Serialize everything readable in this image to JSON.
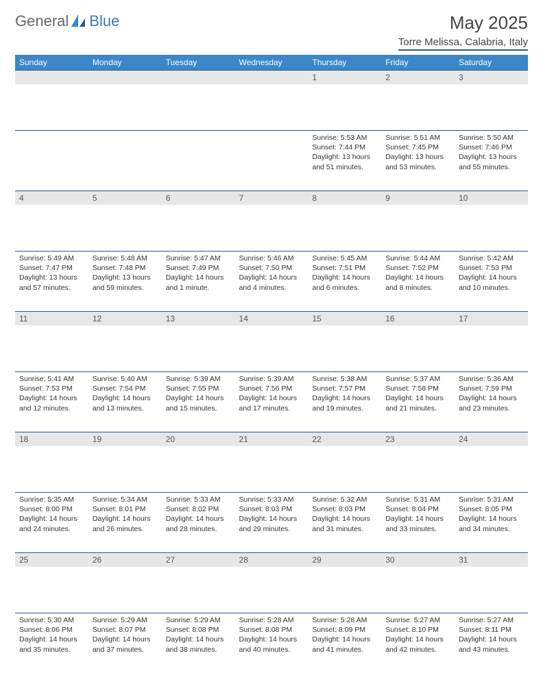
{
  "logo": {
    "general": "General",
    "blue": "Blue"
  },
  "title": "May 2025",
  "location": "Torre Melissa, Calabria, Italy",
  "dayHeaders": [
    "Sunday",
    "Monday",
    "Tuesday",
    "Wednesday",
    "Thursday",
    "Friday",
    "Saturday"
  ],
  "colors": {
    "header_bg": "#3b87c8",
    "rule": "#2a5a8a",
    "daynum_bg": "#e7e7e7"
  },
  "weeks": [
    [
      null,
      null,
      null,
      null,
      {
        "n": "1",
        "sr": "5:53 AM",
        "ss": "7:44 PM",
        "dl": "13 hours and 51 minutes."
      },
      {
        "n": "2",
        "sr": "5:51 AM",
        "ss": "7:45 PM",
        "dl": "13 hours and 53 minutes."
      },
      {
        "n": "3",
        "sr": "5:50 AM",
        "ss": "7:46 PM",
        "dl": "13 hours and 55 minutes."
      }
    ],
    [
      {
        "n": "4",
        "sr": "5:49 AM",
        "ss": "7:47 PM",
        "dl": "13 hours and 57 minutes."
      },
      {
        "n": "5",
        "sr": "5:48 AM",
        "ss": "7:48 PM",
        "dl": "13 hours and 59 minutes."
      },
      {
        "n": "6",
        "sr": "5:47 AM",
        "ss": "7:49 PM",
        "dl": "14 hours and 1 minute."
      },
      {
        "n": "7",
        "sr": "5:46 AM",
        "ss": "7:50 PM",
        "dl": "14 hours and 4 minutes."
      },
      {
        "n": "8",
        "sr": "5:45 AM",
        "ss": "7:51 PM",
        "dl": "14 hours and 6 minutes."
      },
      {
        "n": "9",
        "sr": "5:44 AM",
        "ss": "7:52 PM",
        "dl": "14 hours and 8 minutes."
      },
      {
        "n": "10",
        "sr": "5:42 AM",
        "ss": "7:53 PM",
        "dl": "14 hours and 10 minutes."
      }
    ],
    [
      {
        "n": "11",
        "sr": "5:41 AM",
        "ss": "7:53 PM",
        "dl": "14 hours and 12 minutes."
      },
      {
        "n": "12",
        "sr": "5:40 AM",
        "ss": "7:54 PM",
        "dl": "14 hours and 13 minutes."
      },
      {
        "n": "13",
        "sr": "5:39 AM",
        "ss": "7:55 PM",
        "dl": "14 hours and 15 minutes."
      },
      {
        "n": "14",
        "sr": "5:39 AM",
        "ss": "7:56 PM",
        "dl": "14 hours and 17 minutes."
      },
      {
        "n": "15",
        "sr": "5:38 AM",
        "ss": "7:57 PM",
        "dl": "14 hours and 19 minutes."
      },
      {
        "n": "16",
        "sr": "5:37 AM",
        "ss": "7:58 PM",
        "dl": "14 hours and 21 minutes."
      },
      {
        "n": "17",
        "sr": "5:36 AM",
        "ss": "7:59 PM",
        "dl": "14 hours and 23 minutes."
      }
    ],
    [
      {
        "n": "18",
        "sr": "5:35 AM",
        "ss": "8:00 PM",
        "dl": "14 hours and 24 minutes."
      },
      {
        "n": "19",
        "sr": "5:34 AM",
        "ss": "8:01 PM",
        "dl": "14 hours and 26 minutes."
      },
      {
        "n": "20",
        "sr": "5:33 AM",
        "ss": "8:02 PM",
        "dl": "14 hours and 28 minutes."
      },
      {
        "n": "21",
        "sr": "5:33 AM",
        "ss": "8:03 PM",
        "dl": "14 hours and 29 minutes."
      },
      {
        "n": "22",
        "sr": "5:32 AM",
        "ss": "8:03 PM",
        "dl": "14 hours and 31 minutes."
      },
      {
        "n": "23",
        "sr": "5:31 AM",
        "ss": "8:04 PM",
        "dl": "14 hours and 33 minutes."
      },
      {
        "n": "24",
        "sr": "5:31 AM",
        "ss": "8:05 PM",
        "dl": "14 hours and 34 minutes."
      }
    ],
    [
      {
        "n": "25",
        "sr": "5:30 AM",
        "ss": "8:06 PM",
        "dl": "14 hours and 35 minutes."
      },
      {
        "n": "26",
        "sr": "5:29 AM",
        "ss": "8:07 PM",
        "dl": "14 hours and 37 minutes."
      },
      {
        "n": "27",
        "sr": "5:29 AM",
        "ss": "8:08 PM",
        "dl": "14 hours and 38 minutes."
      },
      {
        "n": "28",
        "sr": "5:28 AM",
        "ss": "8:08 PM",
        "dl": "14 hours and 40 minutes."
      },
      {
        "n": "29",
        "sr": "5:28 AM",
        "ss": "8:09 PM",
        "dl": "14 hours and 41 minutes."
      },
      {
        "n": "30",
        "sr": "5:27 AM",
        "ss": "8:10 PM",
        "dl": "14 hours and 42 minutes."
      },
      {
        "n": "31",
        "sr": "5:27 AM",
        "ss": "8:11 PM",
        "dl": "14 hours and 43 minutes."
      }
    ]
  ],
  "labels": {
    "sunrise": "Sunrise: ",
    "sunset": "Sunset: ",
    "daylight": "Daylight: "
  }
}
